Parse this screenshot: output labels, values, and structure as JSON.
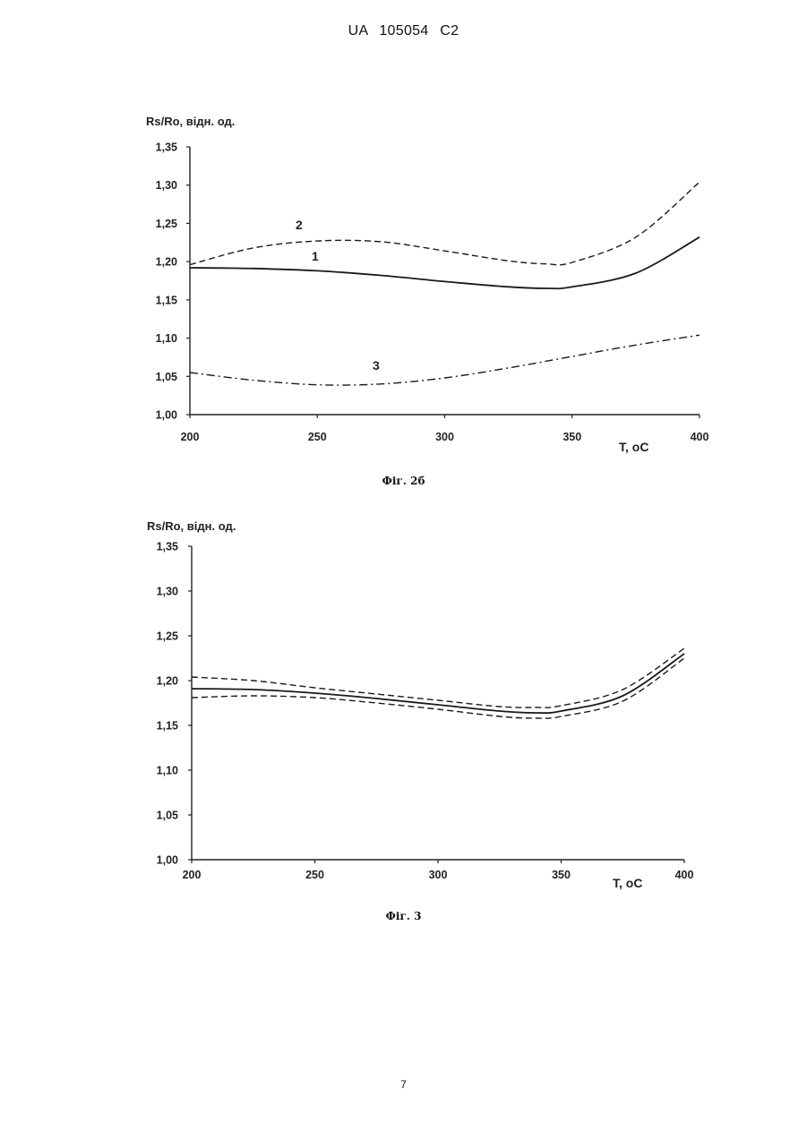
{
  "header": {
    "text": "UA   105054   C2"
  },
  "page_number": "7",
  "figures": [
    {
      "caption": "Фіг. 2б"
    },
    {
      "caption": "Фіг. 3"
    }
  ],
  "chart_data": [
    {
      "type": "line",
      "title": "",
      "ylabel": "Rs/Ro, відн. од.",
      "xlabel": "T, oC",
      "xlim": [
        200,
        400
      ],
      "ylim": [
        1.0,
        1.35
      ],
      "xticks": [
        "200",
        "250",
        "300",
        "350",
        "400"
      ],
      "yticks": [
        "1,00",
        "1,05",
        "1,10",
        "1,15",
        "1,20",
        "1,25",
        "1,30",
        "1,35"
      ],
      "grid": false,
      "series": [
        {
          "name": "1",
          "style": "solid",
          "x": [
            200,
            225,
            250,
            275,
            300,
            325,
            340,
            350,
            375,
            400
          ],
          "y": [
            1.192,
            1.191,
            1.188,
            1.182,
            1.174,
            1.167,
            1.165,
            1.167,
            1.185,
            1.232
          ]
        },
        {
          "name": "2",
          "style": "dashed",
          "x": [
            200,
            225,
            250,
            275,
            300,
            325,
            340,
            350,
            375,
            400
          ],
          "y": [
            1.196,
            1.218,
            1.227,
            1.226,
            1.214,
            1.201,
            1.197,
            1.199,
            1.232,
            1.304
          ]
        },
        {
          "name": "3",
          "style": "dashdot",
          "x": [
            200,
            225,
            250,
            275,
            300,
            325,
            350,
            375,
            400
          ],
          "y": [
            1.055,
            1.045,
            1.039,
            1.04,
            1.048,
            1.061,
            1.076,
            1.091,
            1.104
          ]
        }
      ]
    },
    {
      "type": "line",
      "title": "",
      "ylabel": "Rs/Ro, відн. од.",
      "xlabel": "T, oC",
      "xlim": [
        200,
        400
      ],
      "ylim": [
        1.0,
        1.35
      ],
      "xticks": [
        "200",
        "250",
        "300",
        "350",
        "400"
      ],
      "yticks": [
        "1,00",
        "1,05",
        "1,10",
        "1,15",
        "1,20",
        "1,25",
        "1,30",
        "1,35"
      ],
      "grid": false,
      "series": [
        {
          "style": "solid",
          "x": [
            200,
            225,
            250,
            275,
            300,
            325,
            340,
            350,
            375,
            400
          ],
          "y": [
            1.191,
            1.19,
            1.186,
            1.18,
            1.173,
            1.166,
            1.164,
            1.166,
            1.183,
            1.23
          ]
        },
        {
          "style": "dashed",
          "x": [
            200,
            225,
            250,
            275,
            300,
            325,
            340,
            350,
            375,
            400
          ],
          "y": [
            1.204,
            1.2,
            1.192,
            1.185,
            1.178,
            1.171,
            1.17,
            1.172,
            1.19,
            1.236
          ]
        },
        {
          "style": "dashed",
          "x": [
            200,
            225,
            250,
            275,
            300,
            325,
            340,
            350,
            375,
            400
          ],
          "y": [
            1.181,
            1.183,
            1.181,
            1.175,
            1.168,
            1.16,
            1.158,
            1.16,
            1.177,
            1.225
          ]
        }
      ]
    }
  ]
}
